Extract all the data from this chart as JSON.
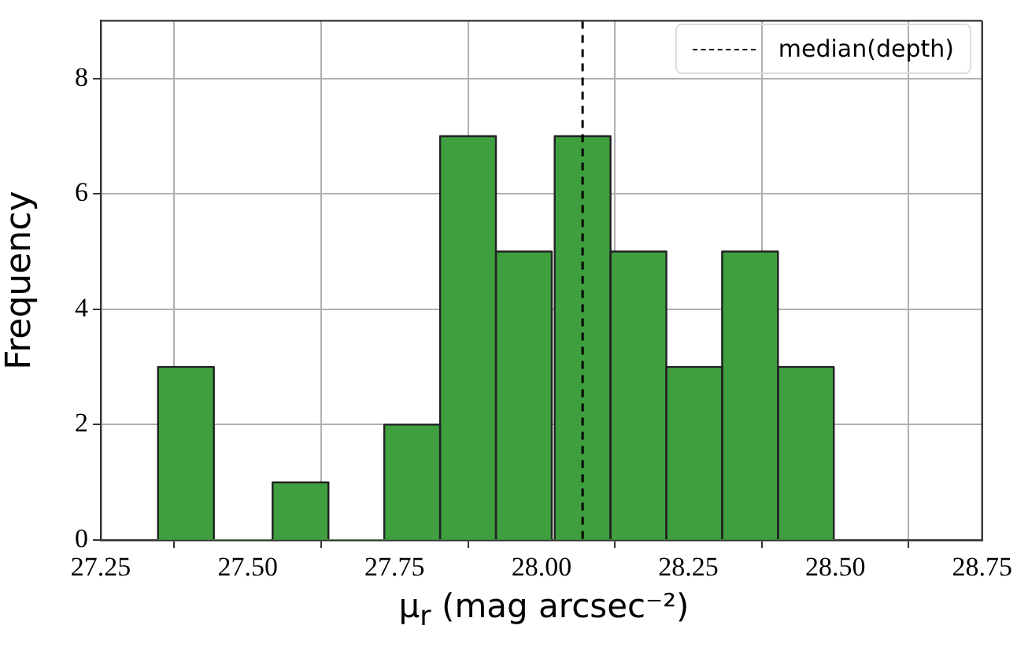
{
  "chart_data": {
    "type": "histogram",
    "xlabel": "μ$_{r}$ (mag arcsec⁻²)",
    "ylabel": "Frequency",
    "bins": [
      27.35,
      27.44,
      27.54,
      27.64,
      27.73,
      27.83,
      27.92,
      28.02,
      28.12,
      28.21,
      28.31,
      28.4,
      28.5
    ],
    "values": [
      3,
      0,
      1,
      0,
      2,
      7,
      5,
      7,
      5,
      3,
      5,
      3
    ],
    "color": "#3f9f3f",
    "xlim": [
      27.25,
      28.75
    ],
    "xticks": [
      27.25,
      {
        "value": 27.5,
        "label": "27.50"
      },
      27.75,
      {
        "value": 28,
        "label": "28.00"
      },
      28.25,
      {
        "value": 28.5,
        "label": "28.50"
      },
      28.75
    ],
    "ylim": [
      0,
      9
    ],
    "yticks": [
      0,
      2,
      4,
      6,
      8
    ],
    "ref_lines": [
      {
        "axis": "x",
        "value": 28.07,
        "label": "median(depth)",
        "color": "#000000",
        "line_style": "dashed"
      }
    ],
    "grid": true,
    "legend": "top right"
  }
}
